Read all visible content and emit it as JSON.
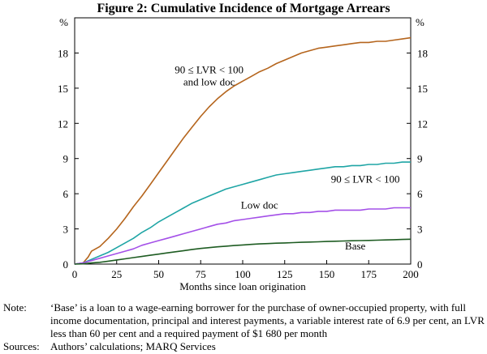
{
  "chart_data": {
    "type": "line",
    "title": "Figure 2: Cumulative Incidence of Mortgage Arrears",
    "xlabel": "Months since loan origination",
    "ylabel_left": "%",
    "ylabel_right": "%",
    "xlim": [
      0,
      200
    ],
    "ylim": [
      0,
      21
    ],
    "xticks": [
      0,
      25,
      50,
      75,
      100,
      125,
      150,
      175,
      200
    ],
    "yticks": [
      0,
      3,
      6,
      9,
      12,
      15,
      18
    ],
    "grid": false,
    "series": [
      {
        "name": "90 ≤ LVR < 100 and low doc",
        "label_lines": [
          "90 ≤ LVR < 100",
          "and low doc"
        ],
        "color": "#b5651d",
        "x": [
          0,
          5,
          8,
          10,
          15,
          20,
          25,
          30,
          35,
          40,
          45,
          50,
          55,
          60,
          65,
          70,
          75,
          80,
          85,
          90,
          95,
          100,
          105,
          110,
          115,
          120,
          125,
          130,
          135,
          140,
          145,
          150,
          155,
          160,
          165,
          170,
          175,
          180,
          185,
          190,
          195,
          200
        ],
        "values": [
          0,
          0.1,
          0.6,
          1.1,
          1.5,
          2.2,
          3.0,
          3.9,
          4.9,
          5.8,
          6.8,
          7.8,
          8.8,
          9.8,
          10.8,
          11.7,
          12.6,
          13.4,
          14.1,
          14.7,
          15.2,
          15.6,
          16.0,
          16.4,
          16.7,
          17.1,
          17.4,
          17.7,
          18.0,
          18.2,
          18.4,
          18.5,
          18.6,
          18.7,
          18.8,
          18.9,
          18.9,
          19.0,
          19.0,
          19.1,
          19.2,
          19.3
        ]
      },
      {
        "name": "90 ≤ LVR < 100",
        "label_lines": [
          "90 ≤ LVR < 100"
        ],
        "color": "#1fa5a5",
        "x": [
          0,
          5,
          10,
          15,
          20,
          25,
          30,
          35,
          40,
          45,
          50,
          55,
          60,
          65,
          70,
          75,
          80,
          85,
          90,
          95,
          100,
          105,
          110,
          115,
          120,
          125,
          130,
          135,
          140,
          145,
          150,
          155,
          160,
          165,
          170,
          175,
          180,
          185,
          190,
          195,
          200
        ],
        "values": [
          0,
          0.1,
          0.4,
          0.7,
          1.0,
          1.4,
          1.8,
          2.2,
          2.7,
          3.1,
          3.6,
          4.0,
          4.4,
          4.8,
          5.2,
          5.5,
          5.8,
          6.1,
          6.4,
          6.6,
          6.8,
          7.0,
          7.2,
          7.4,
          7.6,
          7.7,
          7.8,
          7.9,
          8.0,
          8.1,
          8.2,
          8.3,
          8.3,
          8.4,
          8.4,
          8.5,
          8.5,
          8.6,
          8.6,
          8.7,
          8.7
        ]
      },
      {
        "name": "Low doc",
        "label_lines": [
          "Low doc"
        ],
        "color": "#a450e8",
        "x": [
          0,
          5,
          10,
          15,
          20,
          25,
          30,
          35,
          40,
          45,
          50,
          55,
          60,
          65,
          70,
          75,
          80,
          85,
          90,
          95,
          100,
          105,
          110,
          115,
          120,
          125,
          130,
          135,
          140,
          145,
          150,
          155,
          160,
          165,
          170,
          175,
          180,
          185,
          190,
          195,
          200
        ],
        "values": [
          0,
          0.1,
          0.3,
          0.5,
          0.7,
          0.9,
          1.1,
          1.3,
          1.6,
          1.8,
          2.0,
          2.2,
          2.4,
          2.6,
          2.8,
          3.0,
          3.2,
          3.4,
          3.5,
          3.7,
          3.8,
          3.9,
          4.0,
          4.1,
          4.2,
          4.3,
          4.3,
          4.4,
          4.4,
          4.5,
          4.5,
          4.6,
          4.6,
          4.6,
          4.6,
          4.7,
          4.7,
          4.7,
          4.8,
          4.8,
          4.8
        ]
      },
      {
        "name": "Base",
        "label_lines": [
          "Base"
        ],
        "color": "#1e5c22",
        "x": [
          0,
          5,
          10,
          15,
          20,
          25,
          30,
          35,
          40,
          45,
          50,
          55,
          60,
          65,
          70,
          75,
          80,
          85,
          90,
          95,
          100,
          105,
          110,
          115,
          120,
          125,
          130,
          135,
          140,
          145,
          150,
          155,
          160,
          165,
          170,
          175,
          180,
          185,
          190,
          195,
          200
        ],
        "values": [
          0,
          0.02,
          0.1,
          0.15,
          0.25,
          0.35,
          0.45,
          0.55,
          0.65,
          0.75,
          0.85,
          0.95,
          1.05,
          1.15,
          1.25,
          1.33,
          1.4,
          1.47,
          1.53,
          1.58,
          1.63,
          1.68,
          1.72,
          1.75,
          1.78,
          1.8,
          1.83,
          1.86,
          1.88,
          1.9,
          1.93,
          1.95,
          1.97,
          1.99,
          2.0,
          2.02,
          2.04,
          2.06,
          2.08,
          2.1,
          2.12
        ]
      }
    ]
  },
  "notes": {
    "note_key": "Note:",
    "note_text": "‘Base’ is a loan to a wage-earning borrower for the purchase of owner-occupied property, with full income documentation, principal and interest payments, a variable interest rate of 6.9 per cent, an LVR less than 60 per cent and a required payment of $1 680 per month",
    "sources_key": "Sources:",
    "sources_text": "Authors’ calculations; MARQ Services"
  }
}
